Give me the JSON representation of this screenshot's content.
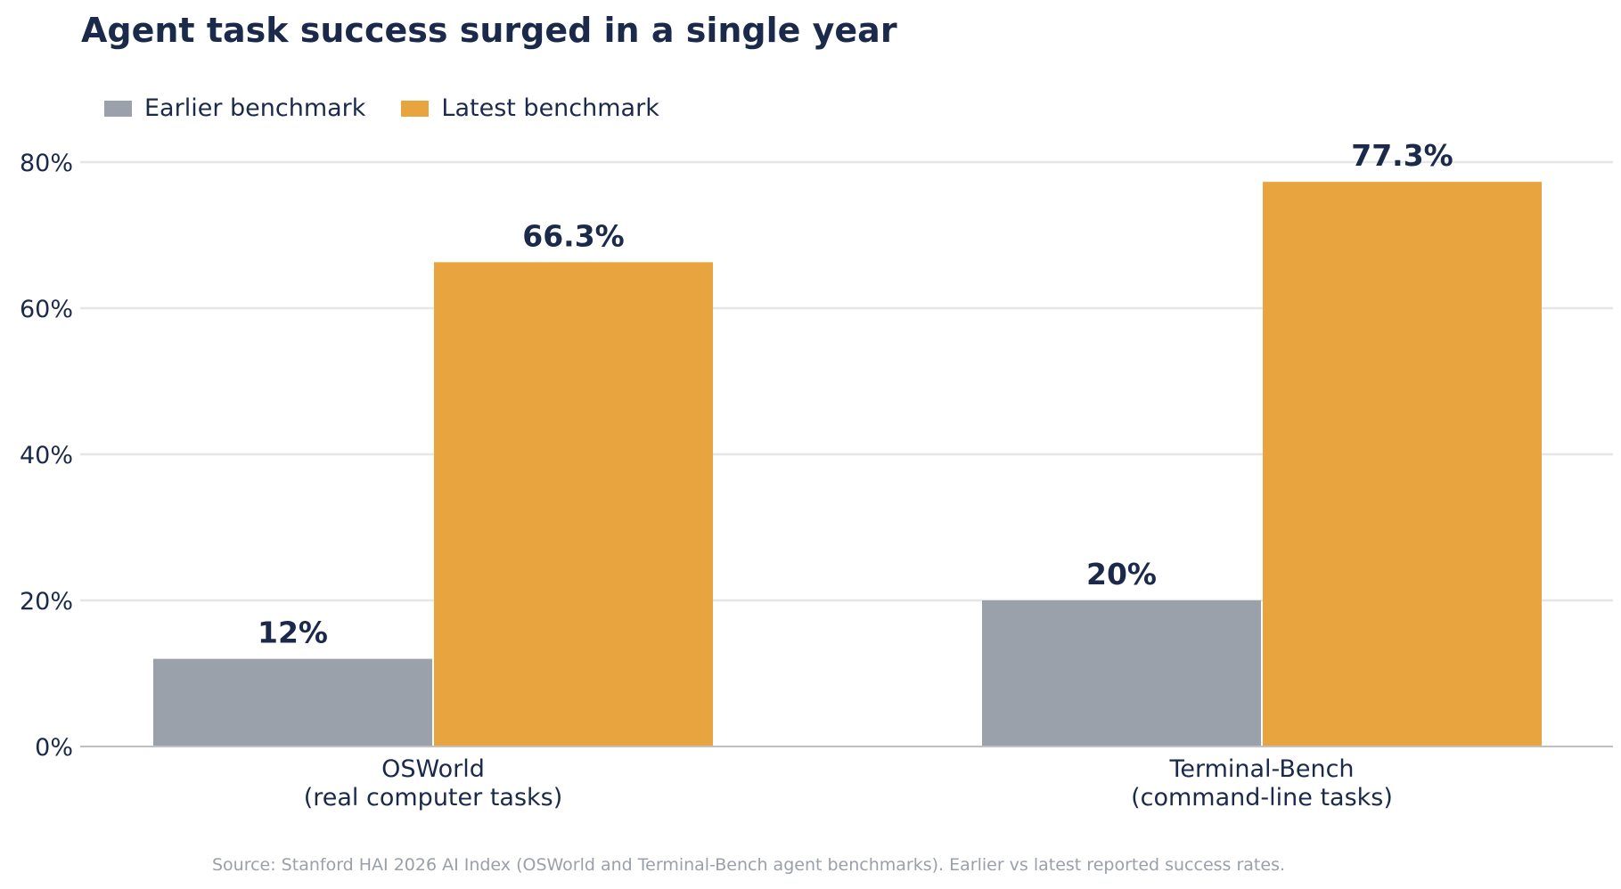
{
  "chart_data": {
    "type": "bar",
    "title": "Agent task success surged in a single year",
    "categories": [
      [
        "OSWorld",
        "(real computer tasks)"
      ],
      [
        "Terminal-Bench",
        "(command-line tasks)"
      ]
    ],
    "series": [
      {
        "name": "Earlier benchmark",
        "color": "#9aa1ab",
        "values": [
          12,
          20
        ],
        "labels": [
          "12%",
          "20%"
        ]
      },
      {
        "name": "Latest benchmark",
        "color": "#e8a43e",
        "values": [
          66.3,
          77.3
        ],
        "labels": [
          "66.3%",
          "77.3%"
        ]
      }
    ],
    "ylim": [
      0,
      80
    ],
    "yticks": [
      0,
      20,
      40,
      60,
      80
    ],
    "ytick_labels": [
      "0%",
      "20%",
      "40%",
      "60%",
      "80%"
    ],
    "xlabel": "",
    "ylabel": "",
    "grid": "horizontal",
    "legend_position": "top-left",
    "source": "Source: Stanford HAI 2026 AI Index (OSWorld and Terminal-Bench agent benchmarks). Earlier vs latest reported success rates."
  },
  "colors": {
    "text": "#1b2a4a",
    "grid": "#e6e6e6",
    "axis": "#c0c0c0",
    "source": "#9aa0aa"
  }
}
